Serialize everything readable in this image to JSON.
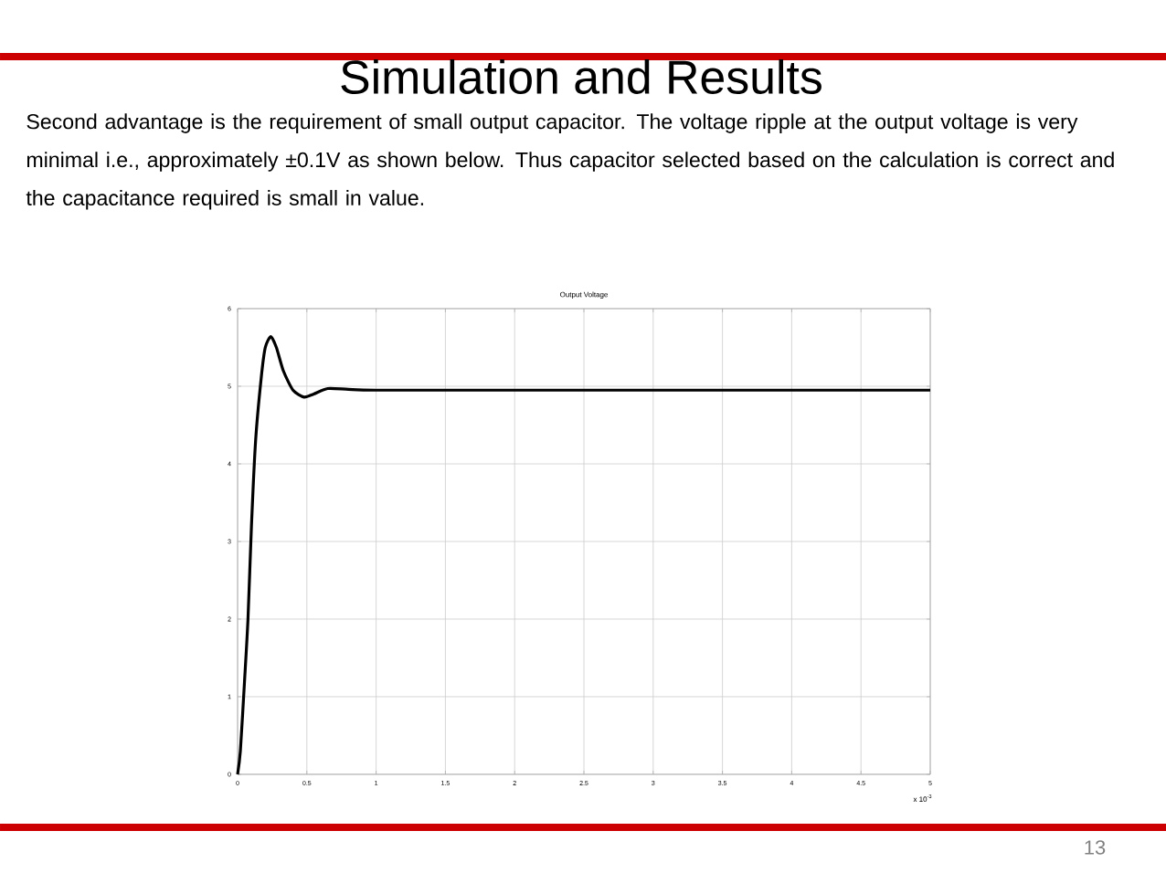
{
  "chart_data": {
    "type": "line",
    "title": "Simulation and Results",
    "subtitle": "Output Voltage",
    "annotations": [
      "Second advantage is the requirement of small output capacitor. The voltage ripple at the output voltage is very minimal i.e., approximately ±0.1V as shown below. Thus capacitor selected based on the calculation is correct and the capacitance required is small in value.",
      "x 10$^{-3}$",
      "13"
    ],
    "x": [
      0,
      0.02,
      0.05,
      0.075,
      0.1,
      0.13,
      0.17,
      0.2,
      0.24,
      0.28,
      0.33,
      0.4,
      0.48,
      0.55,
      0.65,
      0.8,
      1,
      2,
      3,
      4,
      5
    ],
    "series": [
      {
        "color": "#000000",
        "values": [
          0,
          0.3,
          1.2,
          2,
          3.2,
          4.3,
          5.1,
          5.5,
          5.64,
          5.5,
          5.2,
          4.95,
          4.86,
          4.9,
          4.97,
          4.96,
          4.95,
          4.95,
          4.95,
          4.95,
          4.95
        ]
      }
    ],
    "xlim": [
      0,
      5
    ],
    "xticks": [
      0,
      0.5,
      1,
      1.5,
      2,
      2.5,
      3,
      3.5,
      4,
      4.5,
      5
    ],
    "ylim": [
      0,
      6
    ],
    "yticks": [
      0,
      1,
      2,
      3,
      4,
      5,
      6
    ],
    "grid": true,
    "marker": "none",
    "line_style": "solid"
  }
}
